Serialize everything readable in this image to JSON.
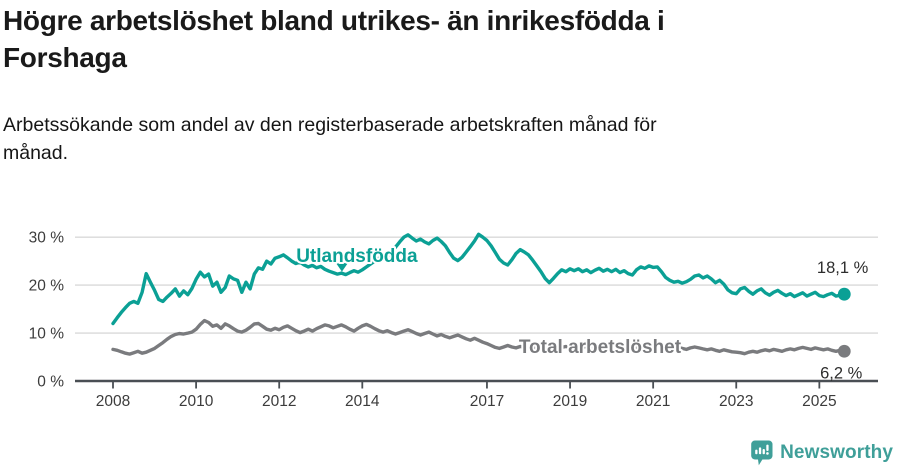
{
  "header": {
    "title": "Högre arbetslöshet bland utrikes- än inrikesfödda i\nForshaga",
    "subtitle": "Arbetssökande som andel av den registerbaserade arbetskraften månad för\nmånad."
  },
  "footer": {
    "brand": "Newsworthy",
    "logo_icon": "chart-in-speech-bubble-icon"
  },
  "colors": {
    "series_foreign": "#0ba095",
    "series_total": "#7a7b7e",
    "grid": "#d9d9d9",
    "axis": "#4a4f54",
    "tick_label": "#3c3c3c",
    "value_label": "#2d2d2d",
    "brand": "#3f9f99",
    "title_text": "#1a1a1a"
  },
  "chart_data": {
    "type": "line",
    "title": "Högre arbetslöshet bland utrikes- än inrikesfödda i Forshaga",
    "subtitle": "Arbetssökande som andel av den registerbaserade arbetskraften månad för månad.",
    "xlabel": "",
    "ylabel": "",
    "grid": "horizontal",
    "legend": "inline-labels",
    "xlim": [
      2007.1,
      2026.4
    ],
    "ylim": [
      0,
      33
    ],
    "x_start": 2008.0,
    "x_step": 0.1,
    "x_end": 2025.6,
    "x_ticks": [
      2008,
      2010,
      2012,
      2014,
      2017,
      2019,
      2021,
      2023,
      2025
    ],
    "x_tick_labels": [
      "2008",
      "2010",
      "2012",
      "2014",
      "2017",
      "2019",
      "2021",
      "2023",
      "2025"
    ],
    "y_ticks": [
      0,
      10,
      20,
      30
    ],
    "y_tick_labels": [
      "0 %",
      "10 %",
      "20 %",
      "30 %"
    ],
    "series": [
      {
        "name": "Utlandsfödda",
        "slug": "utlandsfodda",
        "color": "#0ba095",
        "end_label": "18,1 %",
        "end_value": 18.1,
        "label_at": {
          "x": 2013.87,
          "y": 24.8
        },
        "marker": {
          "icon": "down-triangle-marker",
          "x": 2013.51,
          "y": 24.6,
          "tip_y": 22.8
        },
        "values": [
          12.0,
          13.2,
          14.3,
          15.3,
          16.2,
          16.6,
          16.2,
          18.5,
          22.4,
          20.6,
          18.9,
          17.0,
          16.6,
          17.5,
          18.3,
          19.2,
          17.7,
          18.8,
          18.0,
          19.3,
          21.2,
          22.7,
          21.7,
          22.3,
          19.8,
          20.6,
          18.5,
          19.5,
          21.9,
          21.3,
          21.0,
          18.5,
          20.6,
          19.2,
          22.3,
          23.6,
          23.3,
          25.0,
          24.4,
          25.6,
          25.9,
          26.3,
          25.7,
          25.0,
          24.5,
          24.8,
          24.2,
          23.8,
          24.1,
          23.6,
          23.9,
          23.3,
          22.9,
          22.6,
          22.3,
          22.5,
          22.2,
          22.6,
          23.0,
          22.7,
          23.2,
          23.8,
          24.4,
          25.0,
          25.6,
          26.2,
          26.0,
          26.8,
          27.9,
          29.0,
          30.0,
          30.5,
          29.8,
          29.2,
          29.6,
          29.0,
          28.6,
          29.3,
          29.8,
          29.1,
          28.2,
          26.8,
          25.6,
          25.1,
          25.8,
          26.9,
          28.0,
          29.2,
          30.6,
          30.0,
          29.3,
          28.2,
          26.8,
          25.4,
          24.6,
          24.2,
          25.3,
          26.6,
          27.4,
          26.9,
          26.3,
          25.2,
          24.0,
          22.8,
          21.4,
          20.5,
          21.4,
          22.4,
          23.2,
          22.8,
          23.4,
          23.0,
          23.4,
          22.8,
          23.2,
          22.6,
          23.1,
          23.5,
          22.9,
          23.3,
          22.8,
          23.3,
          22.6,
          23.0,
          22.4,
          22.1,
          23.2,
          23.8,
          23.5,
          24.0,
          23.7,
          23.8,
          22.8,
          21.6,
          21.0,
          20.6,
          20.8,
          20.4,
          20.7,
          21.2,
          21.9,
          22.1,
          21.5,
          21.9,
          21.3,
          20.5,
          21.0,
          20.2,
          19.0,
          18.4,
          18.2,
          19.2,
          19.5,
          18.7,
          18.1,
          18.8,
          19.2,
          18.4,
          17.9,
          18.5,
          18.9,
          18.3,
          17.8,
          18.2,
          17.6,
          18.0,
          18.4,
          17.7,
          18.1,
          18.5,
          17.8,
          17.6,
          18.0,
          18.3,
          17.7,
          17.9,
          18.1
        ]
      },
      {
        "name": "Total arbetslöshet",
        "slug": "total-arbetsloshet",
        "color": "#7a7b7e",
        "end_label": "6,2 %",
        "end_value": 6.2,
        "label_at": {
          "x": 2019.72,
          "y": 5.85
        },
        "values": [
          6.6,
          6.4,
          6.1,
          5.8,
          5.6,
          5.9,
          6.2,
          5.8,
          6.0,
          6.4,
          6.8,
          7.4,
          8.0,
          8.7,
          9.3,
          9.7,
          9.9,
          9.8,
          10.0,
          10.2,
          10.8,
          11.8,
          12.6,
          12.2,
          11.4,
          11.7,
          11.0,
          11.9,
          11.5,
          10.9,
          10.4,
          10.2,
          10.6,
          11.2,
          11.9,
          12.0,
          11.4,
          10.8,
          10.6,
          11.0,
          10.7,
          11.2,
          11.5,
          11.0,
          10.5,
          10.1,
          10.4,
          10.8,
          10.4,
          10.9,
          11.3,
          11.7,
          11.5,
          11.1,
          11.4,
          11.7,
          11.3,
          10.8,
          10.4,
          11.0,
          11.5,
          11.8,
          11.4,
          10.9,
          10.5,
          10.2,
          10.5,
          10.1,
          9.8,
          10.1,
          10.4,
          10.7,
          10.3,
          9.9,
          9.6,
          9.9,
          10.2,
          9.8,
          9.4,
          9.7,
          9.3,
          9.0,
          9.3,
          9.6,
          9.2,
          8.8,
          8.5,
          8.9,
          8.5,
          8.1,
          7.8,
          7.4,
          7.0,
          6.8,
          7.1,
          7.4,
          7.1,
          6.9,
          7.2,
          7.0,
          6.8,
          7.1,
          6.9,
          6.7,
          7.0,
          7.2,
          6.9,
          6.7,
          7.0,
          7.2,
          7.1,
          6.9,
          6.7,
          7.0,
          7.2,
          7.0,
          6.8,
          7.1,
          7.3,
          7.1,
          7.4,
          7.6,
          7.3,
          7.1,
          7.4,
          7.2,
          7.0,
          7.3,
          7.1,
          6.9,
          7.2,
          7.0,
          6.8,
          7.1,
          6.9,
          6.7,
          7.0,
          6.8,
          6.6,
          6.9,
          7.1,
          6.9,
          6.7,
          6.5,
          6.7,
          6.4,
          6.2,
          6.5,
          6.3,
          6.1,
          6.0,
          5.9,
          5.7,
          6.0,
          6.2,
          6.0,
          6.3,
          6.5,
          6.3,
          6.6,
          6.4,
          6.2,
          6.5,
          6.7,
          6.5,
          6.8,
          7.0,
          6.8,
          6.6,
          6.9,
          6.7,
          6.5,
          6.7,
          6.4,
          6.2,
          6.4,
          6.2
        ]
      }
    ]
  }
}
